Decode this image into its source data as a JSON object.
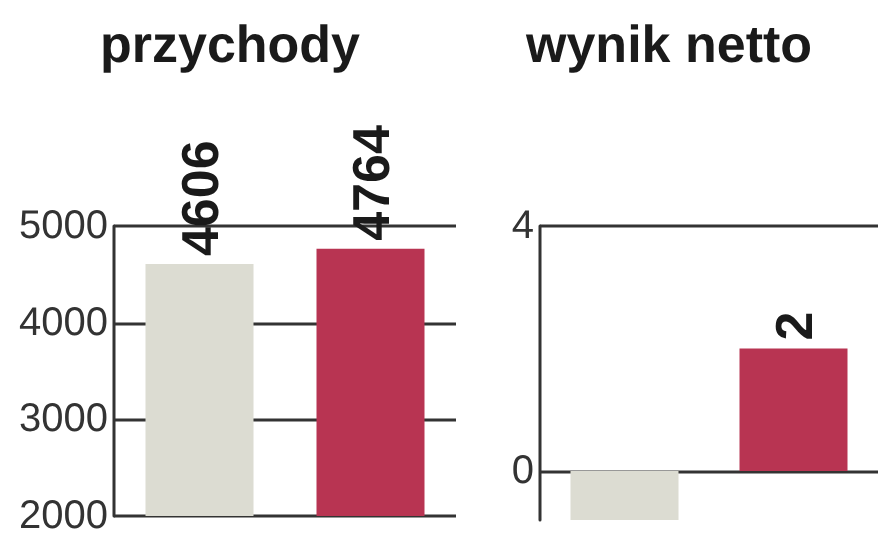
{
  "chart_data": [
    {
      "type": "bar",
      "title": "przychody",
      "categories": [
        null,
        null
      ],
      "colors": [
        "#dcdcd2",
        "#b83452"
      ],
      "values": [
        4606,
        4764
      ],
      "ylim": [
        2000,
        5000
      ],
      "yticks": [
        2000,
        3000,
        4000,
        5000
      ],
      "grid": "y",
      "data_labels": true
    },
    {
      "type": "bar",
      "title": "wynik netto",
      "categories": [
        null,
        null
      ],
      "colors": [
        "#dcdcd2",
        "#b83452"
      ],
      "values": [
        -0.8,
        2
      ],
      "value_labels": [
        null,
        "2"
      ],
      "ylim": [
        -0.8,
        4
      ],
      "yticks": [
        0,
        4
      ],
      "grid": "y"
    }
  ]
}
